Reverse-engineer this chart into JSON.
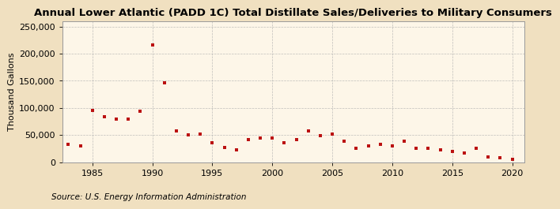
{
  "title": "Annual Lower Atlantic (PADD 1C) Total Distillate Sales/Deliveries to Military Consumers",
  "ylabel": "Thousand Gallons",
  "source": "Source: U.S. Energy Information Administration",
  "background_color": "#f0e0c0",
  "plot_background_color": "#fdf6e8",
  "marker_color": "#bb1111",
  "years": [
    1983,
    1984,
    1985,
    1986,
    1987,
    1988,
    1989,
    1990,
    1991,
    1992,
    1993,
    1994,
    1995,
    1996,
    1997,
    1998,
    1999,
    2000,
    2001,
    2002,
    2003,
    2004,
    2005,
    2006,
    2007,
    2008,
    2009,
    2010,
    2011,
    2012,
    2013,
    2014,
    2015,
    2016,
    2017,
    2018,
    2019,
    2020
  ],
  "values": [
    33000,
    30000,
    96000,
    84000,
    80000,
    79000,
    94000,
    216000,
    146000,
    58000,
    50000,
    52000,
    35000,
    27000,
    23000,
    42000,
    45000,
    44000,
    36000,
    42000,
    58000,
    49000,
    52000,
    38000,
    25000,
    30000,
    33000,
    30000,
    39000,
    26000,
    25000,
    22000,
    20000,
    17000,
    25000,
    10000,
    8000,
    5000
  ],
  "xlim": [
    1982.5,
    2021
  ],
  "ylim": [
    0,
    260000
  ],
  "yticks": [
    0,
    50000,
    100000,
    150000,
    200000,
    250000
  ],
  "ytick_labels": [
    "0",
    "50,000",
    "100,000",
    "150,000",
    "200,000",
    "250,000"
  ],
  "xticks": [
    1985,
    1990,
    1995,
    2000,
    2005,
    2010,
    2015,
    2020
  ],
  "grid_color": "#b0b0b0",
  "title_fontsize": 9.5,
  "label_fontsize": 8,
  "tick_fontsize": 8,
  "source_fontsize": 7.5,
  "marker_size": 12
}
